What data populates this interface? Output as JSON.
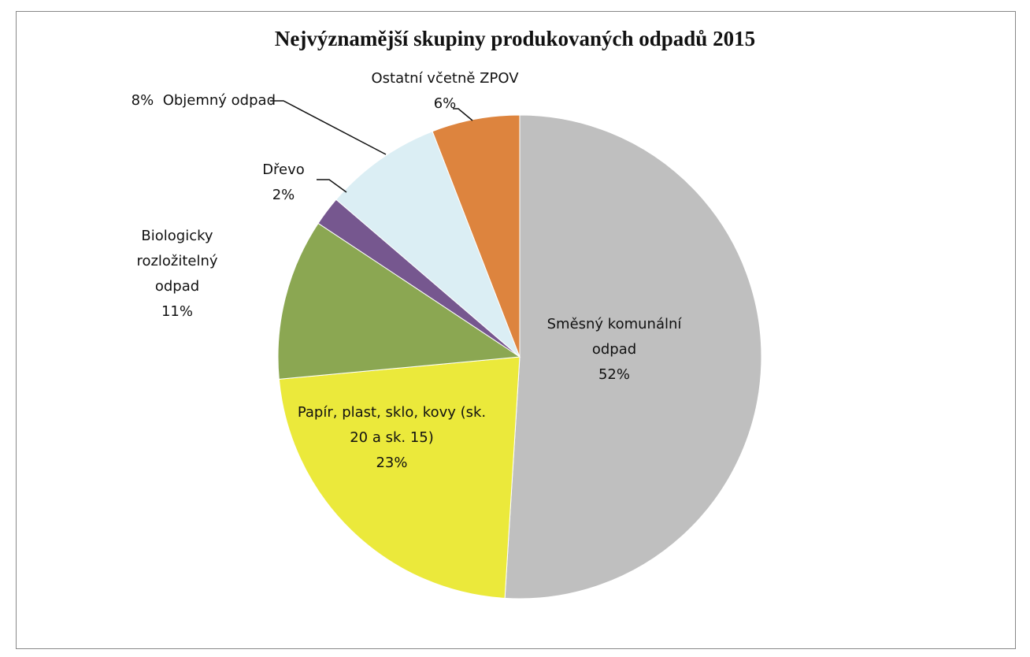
{
  "chart_data": {
    "type": "pie",
    "title": "Nejvýznamější skupiny produkovaných odpadů 2015",
    "categories": [
      "Směsný komunální odpad",
      "Papír, plast, sklo, kovy (sk. 20 a sk. 15)",
      "Biologicky rozložitelný odpad",
      "Dřevo",
      "Objemný odpad",
      "Ostatní včetně ZPOV"
    ],
    "values": [
      52,
      23,
      11,
      2,
      8,
      6
    ],
    "value_labels": [
      "52%",
      "23%",
      "11%",
      "2%",
      "8%",
      "6%"
    ],
    "colors": [
      "#bfbfbf",
      "#ebe93b",
      "#8ba752",
      "#76578f",
      "#dbeef4",
      "#dd843e"
    ]
  }
}
